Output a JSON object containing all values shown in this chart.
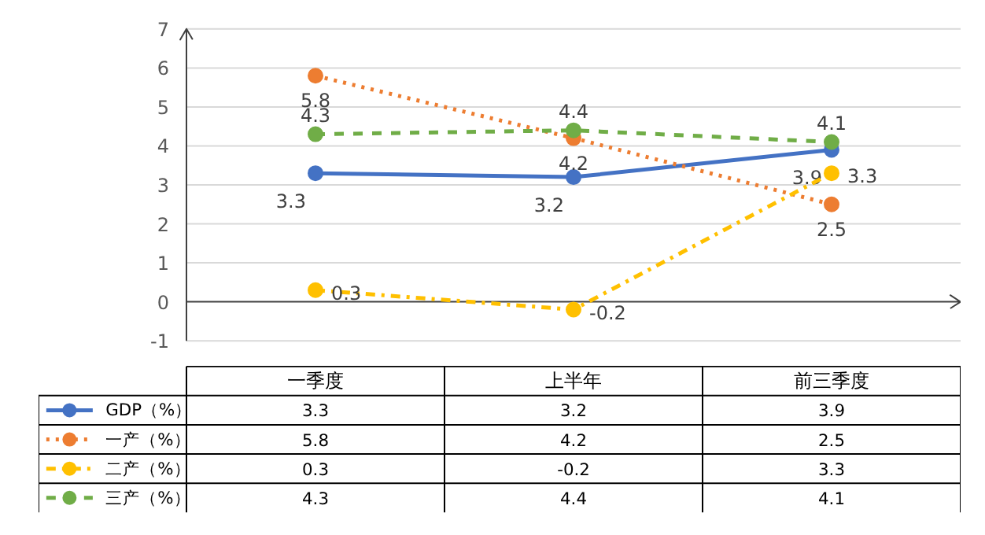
{
  "chart_data": {
    "type": "line",
    "categories": [
      "一季度",
      "上半年",
      "前三季度"
    ],
    "series": [
      {
        "name": "GDP（%）",
        "color": "#4472c4",
        "values": [
          3.3,
          3.2,
          3.9
        ],
        "value_labels": [
          "3.3",
          "3.2",
          "3.9"
        ],
        "line_style": "solid"
      },
      {
        "name": "一产（%）",
        "color": "#ed7d31",
        "values": [
          5.8,
          4.2,
          2.5
        ],
        "value_labels": [
          "5.8",
          "4.2",
          "2.5"
        ],
        "line_style": "dotted"
      },
      {
        "name": "二产（%）",
        "color": "#ffc000",
        "values": [
          0.3,
          -0.2,
          3.3
        ],
        "value_labels": [
          "0.3",
          "-0.2",
          "3.3"
        ],
        "line_style": "dashdot"
      },
      {
        "name": "三产（%）",
        "color": "#70ad47",
        "values": [
          4.3,
          4.4,
          4.1
        ],
        "value_labels": [
          "4.3",
          "4.4",
          "4.1"
        ],
        "line_style": "dashed"
      }
    ],
    "ylim": [
      -1,
      7
    ],
    "yticks": [
      -1,
      0,
      1,
      2,
      3,
      4,
      5,
      6,
      7
    ],
    "grid": "y",
    "ref_lines": [
      {
        "axis": "y",
        "value": 0,
        "color": "#404040"
      }
    ],
    "marker": "circle",
    "data_labels": true,
    "legend": "bottom"
  }
}
